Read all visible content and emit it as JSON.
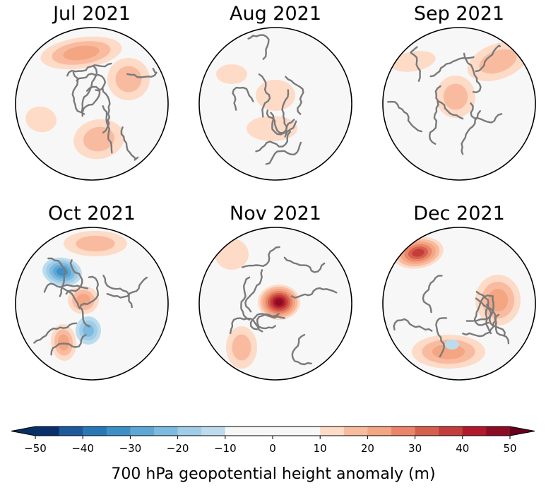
{
  "figure": {
    "panels": [
      {
        "title": "Jul 2021",
        "anomaly_blobs": [
          {
            "dir": "ridge",
            "strength_m": 20,
            "region": "upper Pacific/Siberia edge"
          },
          {
            "dir": "ridge",
            "strength_m": 15,
            "region": "right-side Eurasia"
          },
          {
            "dir": "ridge",
            "strength_m": 15,
            "region": "lower Europe/Atlantic"
          },
          {
            "dir": "ridge",
            "strength_m": 10,
            "region": "left North America"
          }
        ]
      },
      {
        "title": "Aug 2021",
        "anomaly_blobs": [
          {
            "dir": "ridge",
            "strength_m": 10,
            "region": "central Arctic"
          },
          {
            "dir": "ridge",
            "strength_m": 10,
            "region": "lower center"
          },
          {
            "dir": "ridge",
            "strength_m": 10,
            "region": "upper left"
          }
        ]
      },
      {
        "title": "Sep 2021",
        "anomaly_blobs": [
          {
            "dir": "ridge",
            "strength_m": 15,
            "region": "upper right"
          },
          {
            "dir": "ridge",
            "strength_m": 15,
            "region": "central"
          },
          {
            "dir": "ridge",
            "strength_m": 10,
            "region": "upper left"
          }
        ]
      },
      {
        "title": "Oct 2021",
        "anomaly_blobs": [
          {
            "dir": "trough",
            "strength_m": -30,
            "region": "upper left (Alaska)"
          },
          {
            "dir": "trough",
            "strength_m": -20,
            "region": "lower center (Greenland)"
          },
          {
            "dir": "ridge",
            "strength_m": 20,
            "region": "central Arctic"
          },
          {
            "dir": "ridge",
            "strength_m": 15,
            "region": "top"
          },
          {
            "dir": "ridge",
            "strength_m": 20,
            "region": "lower left"
          }
        ]
      },
      {
        "title": "Nov 2021",
        "anomaly_blobs": [
          {
            "dir": "ridge",
            "strength_m": 45,
            "region": "North Pole"
          },
          {
            "dir": "ridge",
            "strength_m": 15,
            "region": "lower left"
          },
          {
            "dir": "ridge",
            "strength_m": 10,
            "region": "upper left"
          }
        ]
      },
      {
        "title": "Dec 2021",
        "anomaly_blobs": [
          {
            "dir": "ridge",
            "strength_m": 35,
            "region": "upper left (Bering)"
          },
          {
            "dir": "ridge",
            "strength_m": 20,
            "region": "right side"
          },
          {
            "dir": "ridge",
            "strength_m": 20,
            "region": "lower"
          },
          {
            "dir": "trough",
            "strength_m": -10,
            "region": "lower center"
          }
        ]
      }
    ]
  },
  "colorbar": {
    "label": "700 hPa geopotential height anomaly (m)",
    "ticks": [
      "−50",
      "−40",
      "−30",
      "−20",
      "−10",
      "0",
      "10",
      "20",
      "30",
      "40",
      "50"
    ],
    "tick_values": [
      -50,
      -40,
      -30,
      -20,
      -10,
      0,
      10,
      20,
      30,
      40,
      50
    ],
    "levels": [
      -50,
      -45,
      -40,
      -35,
      -30,
      -25,
      -20,
      -15,
      -10,
      10,
      15,
      20,
      25,
      30,
      35,
      40,
      45,
      50
    ],
    "colors": [
      "#08306b",
      "#1c5a9c",
      "#2878b8",
      "#3d8fc6",
      "#5ea7d5",
      "#7dbadf",
      "#9fcde8",
      "#bcdcee",
      "#f7f7f7",
      "#fddbc7",
      "#f9bba0",
      "#f4a582",
      "#e9866a",
      "#d6604d",
      "#c33d3a",
      "#b2182b",
      "#8d0c23"
    ],
    "under_color": "#053061",
    "over_color": "#67001f",
    "extend": "both"
  }
}
